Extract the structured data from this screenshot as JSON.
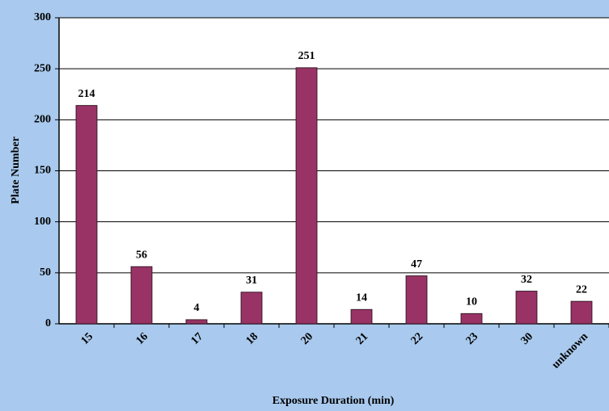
{
  "chart_data": {
    "type": "bar",
    "x_label": "Exposure Duration (min)",
    "y_label": "Plate Number",
    "categories": [
      "15",
      "16",
      "17",
      "18",
      "20",
      "21",
      "22",
      "23",
      "30",
      "unknown"
    ],
    "values": [
      214,
      56,
      4,
      31,
      251,
      14,
      47,
      10,
      32,
      22
    ],
    "color": "#993366",
    "ylim": [
      0,
      300
    ],
    "yticks": [
      0,
      50,
      100,
      150,
      200,
      250,
      300
    ],
    "grid": true
  }
}
